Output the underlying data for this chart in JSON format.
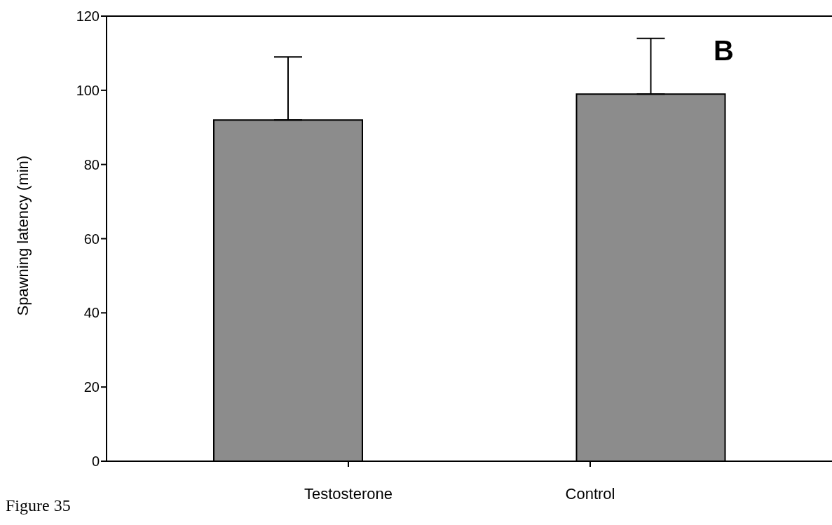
{
  "chart_data": {
    "type": "bar",
    "categories": [
      "Testosterone",
      "Control"
    ],
    "values": [
      92,
      99
    ],
    "errors": [
      [
        92,
        109
      ],
      [
        99,
        114
      ]
    ],
    "color": "#8c8c8c",
    "ylabel": "Spawning latency (min)",
    "ylim": [
      0,
      120
    ],
    "yticks": [
      0,
      20,
      40,
      60,
      80,
      100,
      120
    ],
    "annotations": [
      "B",
      "Figure 35"
    ]
  }
}
